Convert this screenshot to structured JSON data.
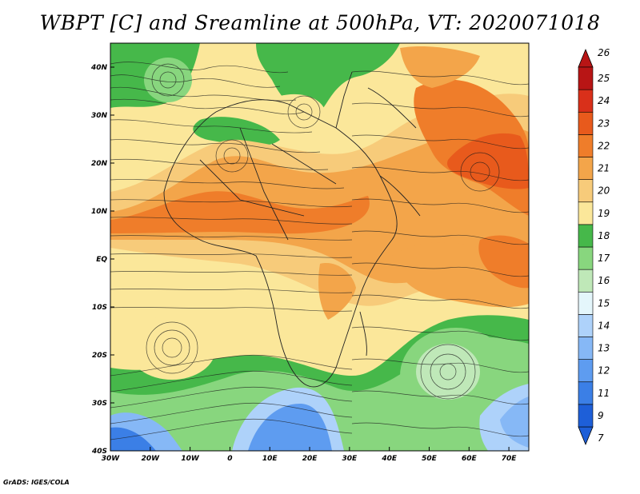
{
  "title": "WBPT [C] and Sreamline at 500hPa, VT: 2020071018",
  "footer": "GrADS: IGES/COLA",
  "axes": {
    "lon_labels": [
      "30W",
      "20W",
      "10W",
      "0",
      "10E",
      "20E",
      "30E",
      "40E",
      "50E",
      "60E",
      "70E"
    ],
    "lon_values": [
      -30,
      -20,
      -10,
      0,
      10,
      20,
      30,
      40,
      50,
      60,
      70
    ],
    "lat_labels": [
      "40N",
      "30N",
      "20N",
      "10N",
      "EQ",
      "10S",
      "20S",
      "30S",
      "40S"
    ],
    "lat_values": [
      40,
      30,
      20,
      10,
      0,
      -10,
      -20,
      -30,
      -40
    ],
    "lon_range": [
      -30,
      75
    ],
    "lat_range": [
      -40,
      45
    ]
  },
  "colorbar": {
    "levels": [
      "7",
      "9",
      "11",
      "12",
      "13",
      "14",
      "15",
      "16",
      "17",
      "18",
      "19",
      "20",
      "21",
      "22",
      "23",
      "24",
      "25",
      "26"
    ],
    "colors": [
      "#1e5fd8",
      "#3b7fe6",
      "#5e9cf0",
      "#86b8f6",
      "#aed2fa",
      "#e4f6fb",
      "#bfe8b8",
      "#88d67e",
      "#46b84a",
      "#fbe79a",
      "#f7cb7a",
      "#f3a54a",
      "#ef7d2a",
      "#e85a1c",
      "#d9301a",
      "#b81515"
    ]
  },
  "map": {
    "field_colors": {
      "c16": "#bfe8b8",
      "c17": "#88d67e",
      "c18": "#46b84a",
      "c19": "#fbe79a",
      "c20": "#f7cb7a",
      "c21": "#f3a54a",
      "c22": "#ef7d2a",
      "c23": "#e85a1c",
      "c24": "#d9301a",
      "c14": "#aed2fa",
      "c13": "#86b8f6",
      "c12": "#5e9cf0",
      "c11": "#3b7fe6"
    }
  }
}
